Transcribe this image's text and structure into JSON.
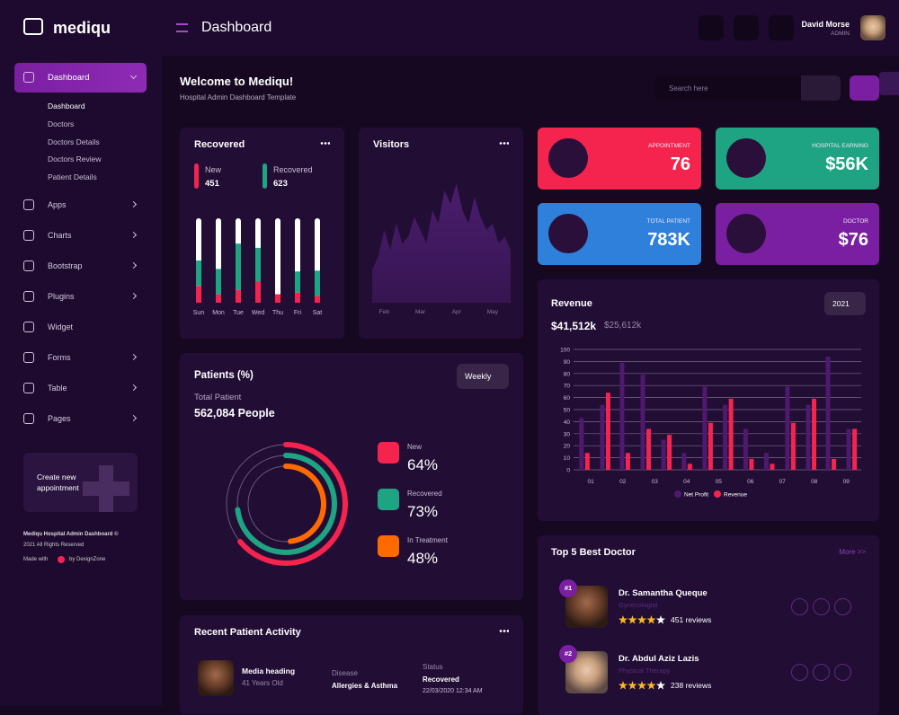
{
  "brand": "mediqu",
  "header": {
    "title": "Dashboard",
    "user_name": "David Morse",
    "user_role": "ADMIN"
  },
  "sidebar": {
    "menu": [
      {
        "label": "Dashboard",
        "items": [
          "Dashboard",
          "Doctors",
          "Doctors Details",
          "Doctors Review",
          "Patient Details"
        ]
      },
      {
        "label": "Apps",
        "arrow": true
      },
      {
        "label": "Charts",
        "arrow": true
      },
      {
        "label": "Bootstrap",
        "arrow": true
      },
      {
        "label": "Plugins",
        "arrow": true
      },
      {
        "label": "Widget",
        "arrow": false
      },
      {
        "label": "Forms",
        "arrow": true
      },
      {
        "label": "Table",
        "arrow": true
      },
      {
        "label": "Pages",
        "arrow": true
      }
    ],
    "promo": "Create new appointment",
    "copyright": "Mediqu Hospital Admin Dashboard ©",
    "rights": "2021 All Rights Reserved",
    "made_with": "Made with",
    "credit": "by DexignZone"
  },
  "welcome": {
    "title": "Welcome to Mediqu!",
    "subtitle": "Hospital Admin Dashboard Template",
    "search_placeholder": "Search here"
  },
  "stats": [
    {
      "label": "APPOINTMENT",
      "value": "76",
      "color": "#f4244f"
    },
    {
      "label": "HOSPITAL EARNING",
      "value": "$56K",
      "color": "#1ea483"
    },
    {
      "label": "TOTAL PATIENT",
      "value": "783K",
      "color": "#2f80db"
    },
    {
      "label": "DOCTOR",
      "value": "$76",
      "color": "#7b1fa2"
    }
  ],
  "chart_data": [
    {
      "type": "track-bar",
      "title": "Recovered",
      "categories": [
        "Sun",
        "Mon",
        "Tue",
        "Wed",
        "Thu",
        "Fri",
        "Sat"
      ],
      "ylim": [
        0,
        100
      ],
      "series": [
        {
          "name": "New",
          "total": 451,
          "color": "#f4244f",
          "values": [
            20,
            10,
            15,
            25,
            10,
            12,
            8
          ]
        },
        {
          "name": "Recovered",
          "total": 623,
          "color": "#1ea483",
          "values": [
            30,
            30,
            55,
            40,
            0,
            25,
            30
          ]
        }
      ]
    },
    {
      "type": "area",
      "title": "Visitors",
      "categories": [
        null,
        null,
        "Feb",
        null,
        null,
        null,
        null,
        null,
        "Mar",
        null,
        null,
        null,
        null,
        null,
        "Apr",
        null,
        null,
        null,
        null,
        null,
        "May",
        null,
        null,
        null
      ],
      "values": [
        25,
        35,
        55,
        40,
        60,
        45,
        50,
        65,
        55,
        45,
        70,
        60,
        85,
        75,
        90,
        70,
        60,
        80,
        65,
        55,
        60,
        45,
        50,
        40
      ],
      "color": "#4a1d6e",
      "ylim": [
        0,
        100
      ]
    },
    {
      "type": "radial",
      "title": "Patients (%)",
      "period": "Weekly",
      "subtitle": "Total Patient",
      "total": "562,084 People",
      "labels": [
        "New",
        "Recovered",
        "In Treatment"
      ],
      "values": [
        64,
        73,
        48
      ],
      "value_labels": [
        "64%",
        "73%",
        "48%"
      ],
      "colors": [
        "#f4244f",
        "#1ea483",
        "#ff6a00"
      ],
      "ylim": [
        0,
        100
      ]
    },
    {
      "type": "bar",
      "title": "Revenue",
      "period": "2021",
      "totals": [
        "$41,512k",
        "$25,612k"
      ],
      "x": [
        0.8,
        1.45,
        2.07,
        2.72,
        3.37,
        4.01,
        4.66,
        5.3,
        5.94,
        6.59,
        7.25,
        7.9,
        8.52,
        9.17
      ],
      "xlim": [
        0.46,
        9.47
      ],
      "xticks": [
        {
          "value": 1,
          "label": "01"
        },
        {
          "value": 2,
          "label": "02"
        },
        {
          "value": 3,
          "label": "03"
        },
        {
          "value": 4,
          "label": "04"
        },
        {
          "value": 5,
          "label": "05"
        },
        {
          "value": 6,
          "label": "06"
        },
        {
          "value": 7,
          "label": "07"
        },
        {
          "value": 8,
          "label": "08"
        },
        {
          "value": 9,
          "label": "09"
        }
      ],
      "ylim": [
        0,
        100
      ],
      "yticks": [
        0,
        10,
        20,
        30,
        40,
        50,
        60,
        70,
        80,
        90,
        100
      ],
      "grid": true,
      "series": [
        {
          "name": "Net Profit",
          "color": "#4e1a6e",
          "values": [
            43,
            54,
            89,
            79,
            25,
            14,
            69,
            54,
            34,
            14,
            69,
            54,
            94,
            34
          ]
        },
        {
          "name": "Revenue",
          "color": "#f4244f",
          "values": [
            14,
            64,
            14,
            34,
            29,
            5,
            39,
            59,
            9,
            5,
            39,
            59,
            9,
            34
          ]
        }
      ]
    }
  ],
  "doctors": {
    "title": "Top 5 Best Doctor",
    "more": "More >>",
    "list": [
      {
        "rank": "#1",
        "name": "Dr. Samantha Queque",
        "specialty": "Gynecologist",
        "rating": 4,
        "reviews": "451 reviews"
      },
      {
        "rank": "#2",
        "name": "Dr. Abdul Aziz Lazis",
        "specialty": "Physical Therapy",
        "rating": 4,
        "reviews": "238 reviews"
      }
    ]
  },
  "activity": {
    "title": "Recent Patient Activity",
    "items": [
      {
        "name": "Media heading",
        "age": "41 Years Old",
        "disease_label": "Disease",
        "disease": "Allergies & Asthma",
        "status_label": "Status",
        "status": "Recovered",
        "date": "22/03/2020 12:34 AM"
      }
    ]
  }
}
